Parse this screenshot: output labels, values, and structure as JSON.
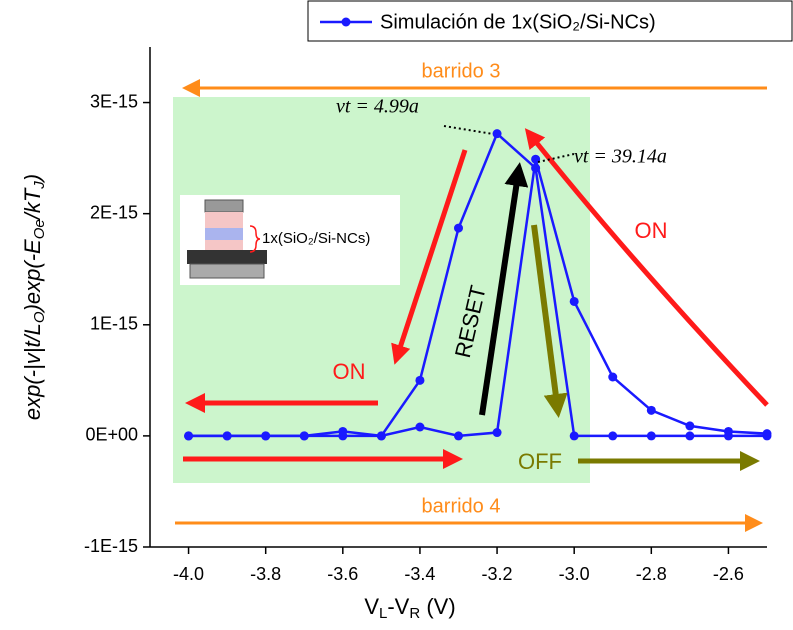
{
  "chart_data": {
    "type": "line",
    "x": [
      -4.0,
      -3.9,
      -3.8,
      -3.7,
      -3.6,
      -3.5,
      -3.4,
      -3.3,
      -3.2,
      -3.1,
      -3.0,
      -2.9,
      -2.8,
      -2.7,
      -2.6,
      -2.5
    ],
    "series": [
      {
        "name": "Simulación de 1x(SiO₂/Si-NCs)",
        "color": "#1a1aff",
        "values": [
          0,
          0,
          0,
          0,
          0,
          0,
          5e-16,
          1.87e-15,
          2.72e-15,
          2.41e-15,
          0,
          0,
          0,
          0,
          0,
          0
        ]
      },
      {
        "color": "#1a1aff",
        "values": [
          0,
          0,
          0,
          0,
          4e-17,
          0,
          8e-17,
          0,
          3e-17,
          2.49e-15,
          1.21e-15,
          5.3e-16,
          2.3e-16,
          9e-17,
          4e-17,
          2e-17
        ]
      }
    ],
    "xlim": [
      -4.1,
      -2.5
    ],
    "xticks": [
      {
        "value": -4,
        "label": "-4.0"
      },
      -3.8,
      -3.6,
      -3.4,
      -3.2,
      {
        "value": -3,
        "label": "-3.0"
      },
      -2.8,
      -2.6
    ],
    "ylim": [
      -1e-15,
      3.5e-15
    ],
    "yticks": [
      {
        "value": -1e-15,
        "label": "-1E-15"
      },
      {
        "value": 0,
        "label": "0E+00"
      },
      {
        "value": 1e-15,
        "label": "1E-15"
      },
      {
        "value": 2e-15,
        "label": "2E-15"
      },
      {
        "value": 3e-15,
        "label": "3E-15"
      }
    ],
    "xlabel_parts": [
      "V",
      "L",
      "-V",
      "R",
      " (V)"
    ],
    "ylabel_parts": [
      "exp(-|v|t/L",
      "O",
      ")exp(-E",
      "Oe",
      "/kT",
      "J",
      ")"
    ],
    "annotations": {
      "barrido_3": "barrido 3",
      "barrido_4": "barrido 4",
      "on_left": "ON",
      "on_right": "ON",
      "reset": "RESET",
      "off": "OFF",
      "vt_1": "vt = 4.99a",
      "vt_2": "vt = 39.14a",
      "inset": "1x(SiO₂/Si-NCs)"
    },
    "legend": "top-right"
  }
}
